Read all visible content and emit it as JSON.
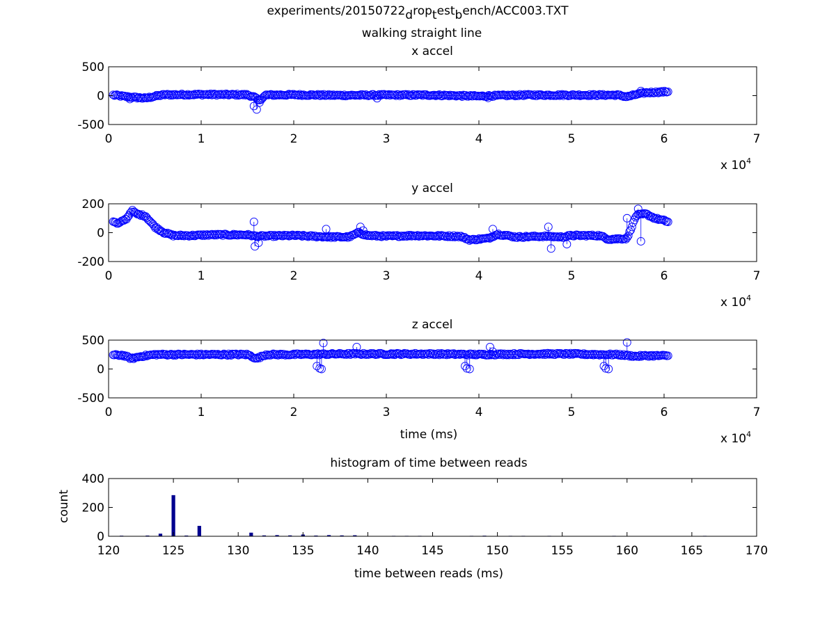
{
  "figure": {
    "title_line1_parts": [
      "experiments/20150722",
      "d",
      "rop",
      "t",
      "est",
      "b",
      "ench/ACC003.TXT"
    ],
    "title_line2": "walking straight line"
  },
  "colors": {
    "marker": "#0000ff",
    "bar": "#00008f",
    "axis": "#000000"
  },
  "chart_data": [
    {
      "type": "scatter",
      "title": "x accel",
      "xlabel": "",
      "ylabel": "",
      "xlim": [
        0,
        70000
      ],
      "ylim": [
        -500,
        500
      ],
      "x_ticks": [
        "0",
        "1",
        "2",
        "3",
        "4",
        "5",
        "6",
        "7"
      ],
      "y_ticks": [
        "500",
        "0",
        "-500"
      ],
      "x_exponent_base": "x 10",
      "x_exponent_power": "4",
      "x_range_data": [
        500,
        60500
      ],
      "trend": [
        [
          500,
          10
        ],
        [
          2000,
          -20
        ],
        [
          4000,
          -45
        ],
        [
          5000,
          -10
        ],
        [
          6000,
          15
        ],
        [
          10000,
          20
        ],
        [
          15000,
          15
        ],
        [
          15800,
          -30
        ],
        [
          16200,
          -90
        ],
        [
          17000,
          10
        ],
        [
          20000,
          15
        ],
        [
          25000,
          5
        ],
        [
          30000,
          10
        ],
        [
          35000,
          10
        ],
        [
          40000,
          -10
        ],
        [
          42000,
          0
        ],
        [
          45000,
          10
        ],
        [
          50000,
          10
        ],
        [
          55000,
          10
        ],
        [
          56000,
          -20
        ],
        [
          57000,
          20
        ],
        [
          58000,
          50
        ],
        [
          60500,
          70
        ]
      ],
      "outliers": [
        [
          15700,
          -180
        ],
        [
          16000,
          -240
        ],
        [
          16300,
          -120
        ],
        [
          2300,
          -60
        ],
        [
          29000,
          -45
        ],
        [
          41000,
          -40
        ],
        [
          57500,
          80
        ]
      ]
    },
    {
      "type": "scatter",
      "title": "y accel",
      "xlabel": "",
      "ylabel": "",
      "xlim": [
        0,
        70000
      ],
      "ylim": [
        -200,
        200
      ],
      "x_ticks": [
        "0",
        "1",
        "2",
        "3",
        "4",
        "5",
        "6",
        "7"
      ],
      "y_ticks": [
        "200",
        "0",
        "-200"
      ],
      "x_exponent_base": "x 10",
      "x_exponent_power": "4",
      "x_range_data": [
        500,
        60500
      ],
      "trend": [
        [
          500,
          80
        ],
        [
          1000,
          60
        ],
        [
          2000,
          100
        ],
        [
          2500,
          155
        ],
        [
          3000,
          130
        ],
        [
          4000,
          115
        ],
        [
          5000,
          40
        ],
        [
          6000,
          0
        ],
        [
          7000,
          -20
        ],
        [
          9000,
          -20
        ],
        [
          11000,
          -15
        ],
        [
          15000,
          -15
        ],
        [
          16000,
          -25
        ],
        [
          20000,
          -20
        ],
        [
          24000,
          -30
        ],
        [
          26000,
          -30
        ],
        [
          27000,
          0
        ],
        [
          28000,
          -20
        ],
        [
          30000,
          -25
        ],
        [
          33000,
          -20
        ],
        [
          38000,
          -25
        ],
        [
          39000,
          -50
        ],
        [
          41000,
          -40
        ],
        [
          42000,
          -10
        ],
        [
          44000,
          -30
        ],
        [
          47000,
          -25
        ],
        [
          49000,
          -30
        ],
        [
          50000,
          -20
        ],
        [
          53000,
          -20
        ],
        [
          54000,
          -45
        ],
        [
          56000,
          -40
        ],
        [
          57000,
          120
        ],
        [
          58000,
          130
        ],
        [
          59000,
          100
        ],
        [
          60500,
          75
        ]
      ],
      "outliers": [
        [
          15700,
          75
        ],
        [
          15800,
          -95
        ],
        [
          16200,
          -70
        ],
        [
          23500,
          25
        ],
        [
          27200,
          40
        ],
        [
          27500,
          15
        ],
        [
          41500,
          25
        ],
        [
          47500,
          40
        ],
        [
          47800,
          -110
        ],
        [
          49500,
          -80
        ],
        [
          56000,
          100
        ],
        [
          57500,
          -60
        ],
        [
          57200,
          165
        ]
      ]
    },
    {
      "type": "scatter",
      "title": "z accel",
      "xlabel": "time (ms)",
      "ylabel": "",
      "xlim": [
        0,
        70000
      ],
      "ylim": [
        -500,
        500
      ],
      "x_ticks": [
        "0",
        "1",
        "2",
        "3",
        "4",
        "5",
        "6",
        "7"
      ],
      "y_ticks": [
        "500",
        "0",
        "-500"
      ],
      "x_exponent_base": "x 10",
      "x_exponent_power": "4",
      "x_range_data": [
        500,
        60500
      ],
      "trend": [
        [
          500,
          240
        ],
        [
          1500,
          240
        ],
        [
          2500,
          180
        ],
        [
          3500,
          220
        ],
        [
          5000,
          250
        ],
        [
          8000,
          250
        ],
        [
          10000,
          250
        ],
        [
          15000,
          250
        ],
        [
          16000,
          180
        ],
        [
          17000,
          250
        ],
        [
          20000,
          250
        ],
        [
          25000,
          260
        ],
        [
          30000,
          260
        ],
        [
          35000,
          260
        ],
        [
          40000,
          250
        ],
        [
          45000,
          260
        ],
        [
          50000,
          260
        ],
        [
          53000,
          250
        ],
        [
          55000,
          250
        ],
        [
          57000,
          220
        ],
        [
          58000,
          230
        ],
        [
          60500,
          230
        ]
      ],
      "outliers": [
        [
          22500,
          50
        ],
        [
          22800,
          10
        ],
        [
          23000,
          0
        ],
        [
          23200,
          450
        ],
        [
          26800,
          380
        ],
        [
          38500,
          50
        ],
        [
          38700,
          10
        ],
        [
          39000,
          0
        ],
        [
          41200,
          380
        ],
        [
          41500,
          300
        ],
        [
          53500,
          50
        ],
        [
          53700,
          10
        ],
        [
          54000,
          0
        ],
        [
          56000,
          460
        ]
      ]
    },
    {
      "type": "bar",
      "title": "histogram of time between reads",
      "xlabel": "time between reads (ms)",
      "ylabel": "count",
      "xlim": [
        120,
        170
      ],
      "ylim": [
        0,
        400
      ],
      "x_ticks": [
        "120",
        "125",
        "130",
        "135",
        "140",
        "145",
        "150",
        "155",
        "160",
        "165",
        "170"
      ],
      "y_ticks": [
        "400",
        "200",
        "0"
      ],
      "bins": [
        121,
        123,
        124,
        125,
        126,
        127,
        131,
        132,
        133,
        134,
        135,
        136,
        137,
        138,
        139,
        142,
        143,
        144,
        148,
        149,
        151,
        152,
        154,
        159,
        166
      ],
      "values": [
        4,
        5,
        18,
        285,
        5,
        72,
        25,
        6,
        8,
        6,
        12,
        5,
        8,
        6,
        7,
        3,
        3,
        3,
        3,
        4,
        3,
        3,
        3,
        3,
        3
      ]
    }
  ]
}
